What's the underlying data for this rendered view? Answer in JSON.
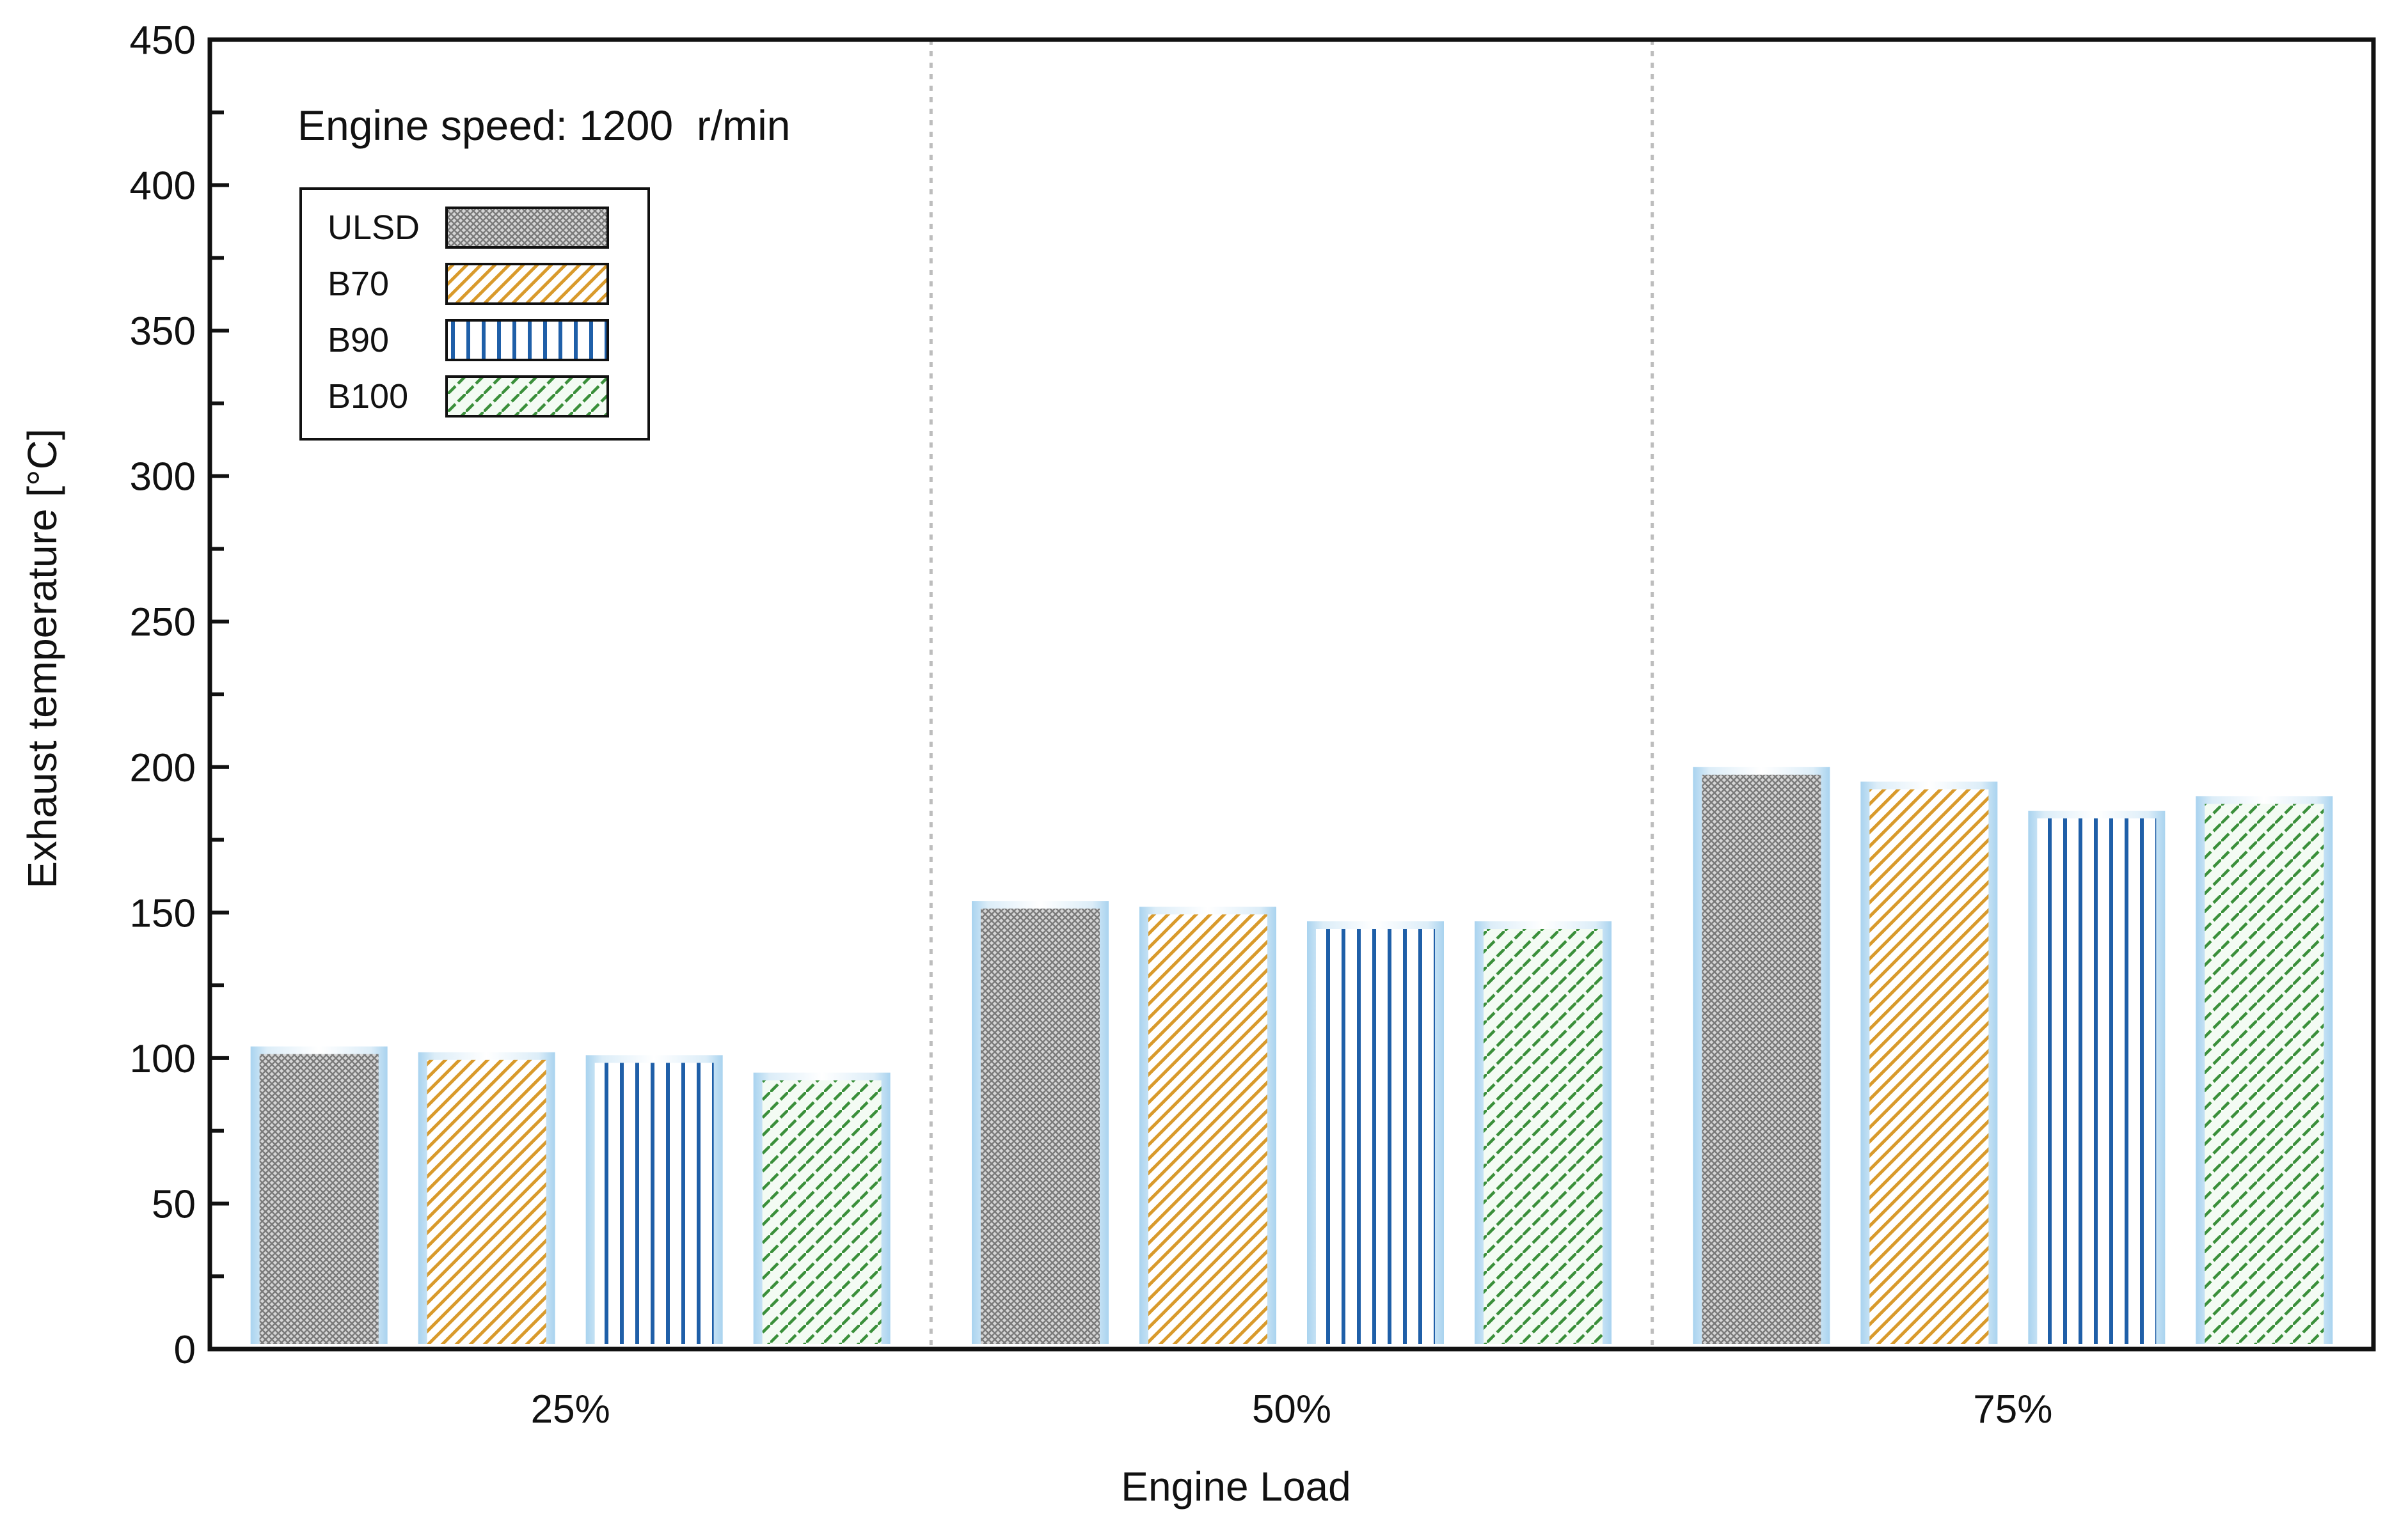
{
  "chart_data": {
    "type": "bar",
    "title": "",
    "annotation": "Engine speed: 1200  r/min",
    "xlabel": "Engine Load",
    "ylabel": "Exhaust temperature [°C]",
    "ylim": [
      0,
      450
    ],
    "yticks": [
      0,
      50,
      100,
      150,
      200,
      250,
      300,
      350,
      400,
      450
    ],
    "categories": [
      "25%",
      "50%",
      "75%"
    ],
    "series": [
      {
        "name": "ULSD",
        "values": [
          104,
          154,
          200
        ],
        "pattern": "crosshatch",
        "color": "#8a8a8a"
      },
      {
        "name": "B70",
        "values": [
          102,
          152,
          195
        ],
        "pattern": "diagonal",
        "color": "#d99a2b"
      },
      {
        "name": "B90",
        "values": [
          101,
          147,
          185
        ],
        "pattern": "vertical",
        "color": "#1f5fa8"
      },
      {
        "name": "B100",
        "values": [
          95,
          147,
          190
        ],
        "pattern": "dashdiag",
        "color": "#3a8f3a"
      }
    ],
    "grid": false,
    "category_separators": true,
    "legend_position": "top-left"
  }
}
